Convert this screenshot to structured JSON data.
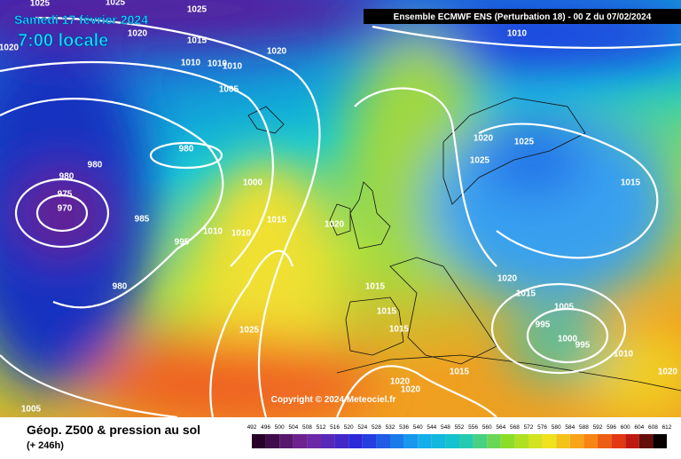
{
  "header": {
    "date": "Samedi 17 février 2024",
    "time": "7:00 locale",
    "run": "Ensemble ECMWF ENS  (Perturbation 18)  - 00 Z du 07/02/2024"
  },
  "isobars": [
    1025,
    1025,
    1025,
    1020,
    1015,
    1020,
    1020,
    1010,
    1010,
    1010,
    1010,
    1005,
    980,
    980,
    980,
    975,
    970,
    985,
    1000,
    1015,
    1020,
    1010,
    1010,
    995,
    980,
    1020,
    1025,
    1025,
    1015,
    1020,
    1015,
    1005,
    995,
    1000,
    995,
    1010,
    1020,
    1015,
    1015,
    1015,
    1015,
    1020,
    1020,
    1025,
    1005
  ],
  "copyright": "Copyright © 2024 Meteociel.fr",
  "footer": {
    "title": "Géop. Z500 & pression au sol",
    "lead": "(+ 246h)"
  },
  "scale": [
    492,
    496,
    500,
    504,
    508,
    512,
    516,
    520,
    524,
    528,
    532,
    536,
    540,
    544,
    548,
    552,
    556,
    560,
    564,
    568,
    572,
    576,
    580,
    584,
    588,
    592,
    596,
    600,
    604,
    608,
    612
  ]
}
